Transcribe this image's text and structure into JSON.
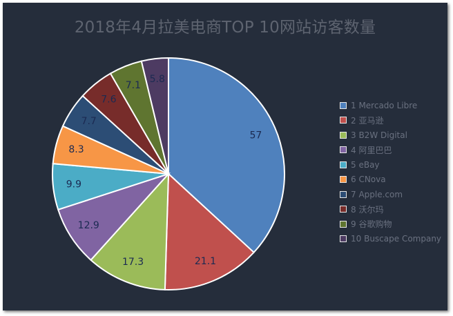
{
  "chart_data": {
    "type": "pie",
    "title": "2018年4月拉美电商TOP 10网站访客数量",
    "categories": [
      "1 Mercado Libre",
      "2 亚马逊",
      "3 B2W Digital",
      "4 阿里巴巴",
      "5 eBay",
      "6 CNova",
      "7 Apple.com",
      "8 沃尔玛",
      "9 谷歌购物",
      "10 Buscape Company"
    ],
    "values": [
      57,
      21.1,
      17.3,
      12.9,
      9.9,
      8.3,
      7.7,
      7.6,
      7.1,
      5.8
    ],
    "labels": [
      "57",
      "21.1",
      "17.3",
      "12.9",
      "9.9",
      "8.3",
      "7.7",
      "7.6",
      "7.1",
      "5.8"
    ],
    "colors": [
      "#4f81bd",
      "#c0504d",
      "#9bbb59",
      "#8064a2",
      "#4bacc6",
      "#f79646",
      "#2c4d75",
      "#772c2a",
      "#5f7530",
      "#4d3b62"
    ],
    "legend_position": "right"
  }
}
